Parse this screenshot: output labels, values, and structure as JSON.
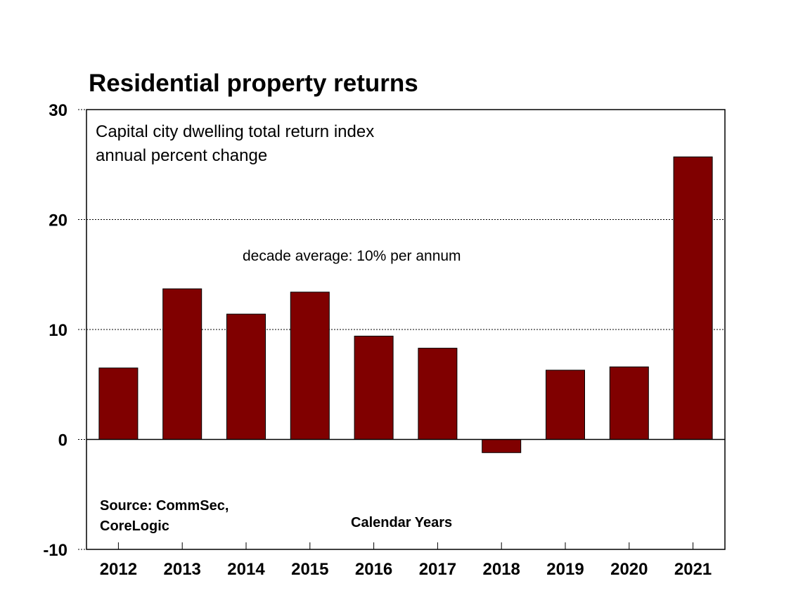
{
  "chart_data": {
    "type": "bar",
    "title": "Residential property returns",
    "subtitle_lines": [
      "Capital city dwelling total return index",
      "annual percent change"
    ],
    "annotation": "decade average: 10% per annum",
    "source_lines": [
      "Source: CommSec,",
      "CoreLogic"
    ],
    "xlabel": "Calendar Years",
    "ylabel": "",
    "categories": [
      "2012",
      "2013",
      "2014",
      "2015",
      "2016",
      "2017",
      "2018",
      "2019",
      "2020",
      "2021"
    ],
    "values": [
      6.5,
      13.7,
      11.4,
      13.4,
      9.4,
      8.3,
      -1.2,
      6.3,
      6.6,
      25.7
    ],
    "ylim": [
      -10,
      30
    ],
    "yticks": [
      "-10",
      "0",
      "10",
      "20",
      "30"
    ],
    "grid": "dotted horizontal at 10, 20",
    "bar_color": "#800000"
  }
}
